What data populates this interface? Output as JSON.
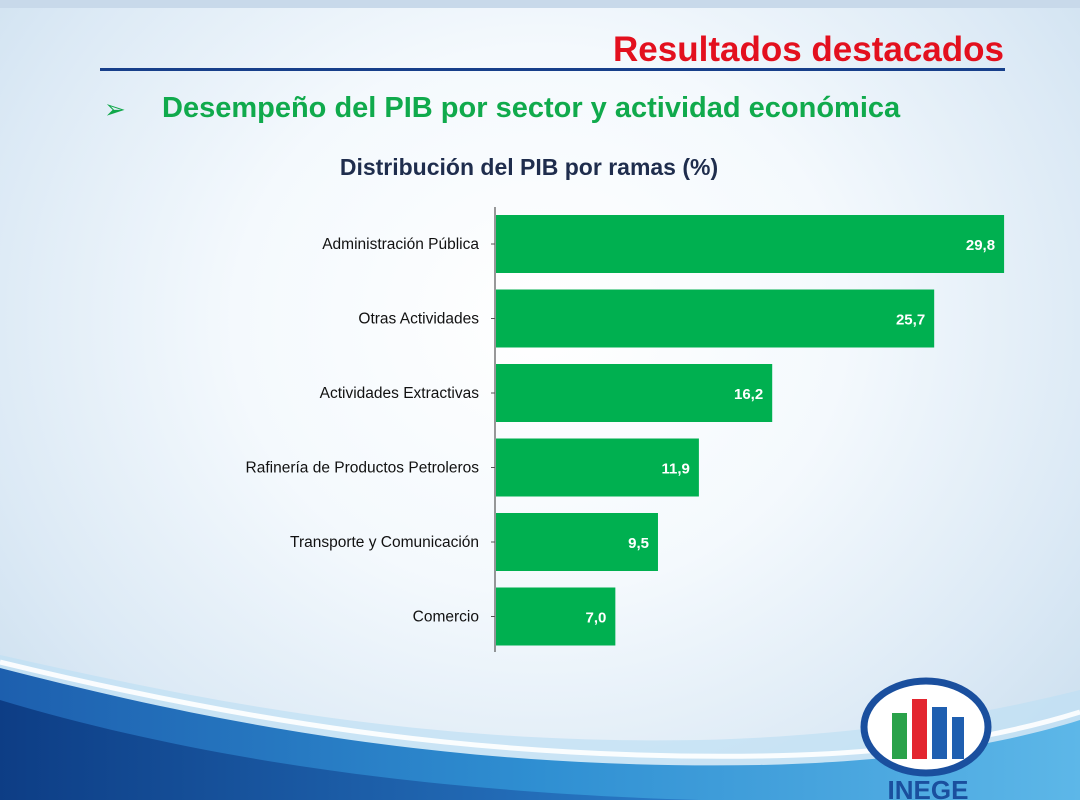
{
  "slide": {
    "title": "Resultados destacados",
    "bullet_symbol": "➢",
    "subtitle": "Desempeño del PIB por sector y actividad económica"
  },
  "colors": {
    "bar": "#00b050",
    "title_red": "#e3101e",
    "rule_blue": "#173f8a",
    "subtitle_green": "#10aa4c"
  },
  "chart_data": {
    "type": "bar",
    "orientation": "horizontal",
    "title": "Distribución del PIB por ramas (%)",
    "categories": [
      "Administración Pública",
      "Otras Actividades",
      "Actividades Extractivas",
      "Rafinería de Productos Petroleros",
      "Transporte y Comunicación",
      "Comercio"
    ],
    "values": [
      29.8,
      25.7,
      16.2,
      11.9,
      9.5,
      7.0
    ],
    "value_labels": [
      "29,8",
      "25,7",
      "16,2",
      "11,9",
      "9,5",
      "7,0"
    ],
    "xlim": [
      0,
      50
    ],
    "grid": false,
    "legend": "none"
  },
  "logo": {
    "text": "INEGE",
    "icon": "bar-chart-logo-icon"
  }
}
